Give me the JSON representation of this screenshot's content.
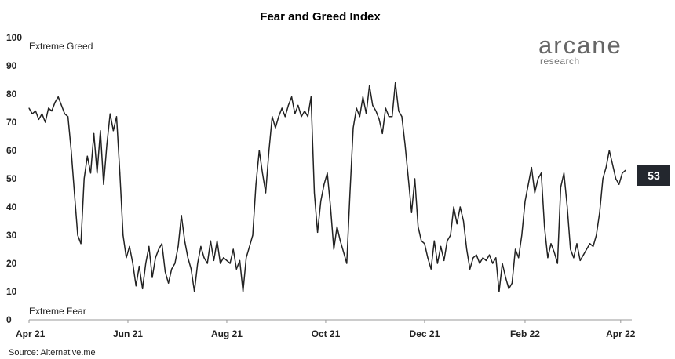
{
  "chart_data": {
    "type": "line",
    "title": "Fear and Greed Index",
    "annotations": {
      "top": "Extreme Greed",
      "bottom": "Extreme Fear"
    },
    "source": "Source: Alternative.me",
    "logo": {
      "main": "arcane",
      "sub": "research"
    },
    "last_value_label": "53",
    "ylim": [
      0,
      100
    ],
    "yticks": [
      0,
      10,
      20,
      30,
      40,
      50,
      60,
      70,
      80,
      90,
      100
    ],
    "xticks": [
      {
        "label": "Apr 21",
        "x": "2021-04-01"
      },
      {
        "label": "Jun 21",
        "x": "2021-06-01"
      },
      {
        "label": "Aug 21",
        "x": "2021-08-01"
      },
      {
        "label": "Oct 21",
        "x": "2021-10-01"
      },
      {
        "label": "Dec 21",
        "x": "2021-12-01"
      },
      {
        "label": "Feb 22",
        "x": "2022-02-01"
      },
      {
        "label": "Apr 22",
        "x": "2022-04-01"
      }
    ],
    "xlim": [
      "2021-04-01",
      "2022-04-04"
    ],
    "series": [
      {
        "color": "#222222",
        "points": [
          [
            "2021-04-01",
            75
          ],
          [
            "2021-04-03",
            73
          ],
          [
            "2021-04-05",
            74
          ],
          [
            "2021-04-07",
            71
          ],
          [
            "2021-04-09",
            73
          ],
          [
            "2021-04-11",
            70
          ],
          [
            "2021-04-13",
            75
          ],
          [
            "2021-04-15",
            74
          ],
          [
            "2021-04-17",
            77
          ],
          [
            "2021-04-19",
            79
          ],
          [
            "2021-04-21",
            76
          ],
          [
            "2021-04-23",
            73
          ],
          [
            "2021-04-25",
            72
          ],
          [
            "2021-04-27",
            60
          ],
          [
            "2021-04-29",
            45
          ],
          [
            "2021-05-01",
            30
          ],
          [
            "2021-05-03",
            27
          ],
          [
            "2021-05-05",
            50
          ],
          [
            "2021-05-07",
            58
          ],
          [
            "2021-05-09",
            52
          ],
          [
            "2021-05-11",
            66
          ],
          [
            "2021-05-13",
            52
          ],
          [
            "2021-05-15",
            67
          ],
          [
            "2021-05-17",
            48
          ],
          [
            "2021-05-19",
            62
          ],
          [
            "2021-05-21",
            73
          ],
          [
            "2021-05-23",
            67
          ],
          [
            "2021-05-25",
            72
          ],
          [
            "2021-05-27",
            52
          ],
          [
            "2021-05-29",
            30
          ],
          [
            "2021-05-31",
            22
          ],
          [
            "2021-06-02",
            26
          ],
          [
            "2021-06-04",
            20
          ],
          [
            "2021-06-06",
            12
          ],
          [
            "2021-06-08",
            19
          ],
          [
            "2021-06-10",
            11
          ],
          [
            "2021-06-12",
            20
          ],
          [
            "2021-06-14",
            26
          ],
          [
            "2021-06-16",
            15
          ],
          [
            "2021-06-18",
            22
          ],
          [
            "2021-06-20",
            25
          ],
          [
            "2021-06-22",
            27
          ],
          [
            "2021-06-24",
            17
          ],
          [
            "2021-06-26",
            13
          ],
          [
            "2021-06-28",
            18
          ],
          [
            "2021-06-30",
            20
          ],
          [
            "2021-07-02",
            26
          ],
          [
            "2021-07-04",
            37
          ],
          [
            "2021-07-06",
            28
          ],
          [
            "2021-07-08",
            22
          ],
          [
            "2021-07-10",
            18
          ],
          [
            "2021-07-12",
            10
          ],
          [
            "2021-07-14",
            20
          ],
          [
            "2021-07-16",
            26
          ],
          [
            "2021-07-18",
            22
          ],
          [
            "2021-07-20",
            20
          ],
          [
            "2021-07-22",
            28
          ],
          [
            "2021-07-24",
            21
          ],
          [
            "2021-07-26",
            28
          ],
          [
            "2021-07-28",
            20
          ],
          [
            "2021-07-30",
            22
          ],
          [
            "2021-08-01",
            21
          ],
          [
            "2021-08-03",
            20
          ],
          [
            "2021-08-05",
            25
          ],
          [
            "2021-08-07",
            18
          ],
          [
            "2021-08-09",
            21
          ],
          [
            "2021-08-11",
            10
          ],
          [
            "2021-08-13",
            22
          ],
          [
            "2021-08-15",
            26
          ],
          [
            "2021-08-17",
            30
          ],
          [
            "2021-08-19",
            48
          ],
          [
            "2021-08-21",
            60
          ],
          [
            "2021-08-23",
            52
          ],
          [
            "2021-08-25",
            45
          ],
          [
            "2021-08-27",
            60
          ],
          [
            "2021-08-29",
            72
          ],
          [
            "2021-08-31",
            68
          ],
          [
            "2021-09-02",
            72
          ],
          [
            "2021-09-04",
            75
          ],
          [
            "2021-09-06",
            72
          ],
          [
            "2021-09-08",
            76
          ],
          [
            "2021-09-10",
            79
          ],
          [
            "2021-09-12",
            73
          ],
          [
            "2021-09-14",
            76
          ],
          [
            "2021-09-16",
            72
          ],
          [
            "2021-09-18",
            74
          ],
          [
            "2021-09-20",
            72
          ],
          [
            "2021-09-22",
            79
          ],
          [
            "2021-09-24",
            45
          ],
          [
            "2021-09-26",
            31
          ],
          [
            "2021-09-28",
            42
          ],
          [
            "2021-09-30",
            48
          ],
          [
            "2021-10-02",
            52
          ],
          [
            "2021-10-04",
            40
          ],
          [
            "2021-10-06",
            25
          ],
          [
            "2021-10-08",
            33
          ],
          [
            "2021-10-10",
            28
          ],
          [
            "2021-10-12",
            24
          ],
          [
            "2021-10-14",
            20
          ],
          [
            "2021-10-16",
            45
          ],
          [
            "2021-10-18",
            68
          ],
          [
            "2021-10-20",
            75
          ],
          [
            "2021-10-22",
            72
          ],
          [
            "2021-10-24",
            79
          ],
          [
            "2021-10-26",
            73
          ],
          [
            "2021-10-28",
            83
          ],
          [
            "2021-10-30",
            76
          ],
          [
            "2021-11-01",
            74
          ],
          [
            "2021-11-03",
            71
          ],
          [
            "2021-11-05",
            66
          ],
          [
            "2021-11-07",
            75
          ],
          [
            "2021-11-09",
            72
          ],
          [
            "2021-11-11",
            72
          ],
          [
            "2021-11-13",
            84
          ],
          [
            "2021-11-15",
            74
          ],
          [
            "2021-11-17",
            72
          ],
          [
            "2021-11-19",
            62
          ],
          [
            "2021-11-21",
            50
          ],
          [
            "2021-11-23",
            38
          ],
          [
            "2021-11-25",
            50
          ],
          [
            "2021-11-27",
            33
          ],
          [
            "2021-11-29",
            28
          ],
          [
            "2021-12-01",
            27
          ],
          [
            "2021-12-03",
            22
          ],
          [
            "2021-12-05",
            18
          ],
          [
            "2021-12-07",
            28
          ],
          [
            "2021-12-09",
            20
          ],
          [
            "2021-12-11",
            26
          ],
          [
            "2021-12-13",
            21
          ],
          [
            "2021-12-15",
            28
          ],
          [
            "2021-12-17",
            30
          ],
          [
            "2021-12-19",
            40
          ],
          [
            "2021-12-21",
            34
          ],
          [
            "2021-12-23",
            40
          ],
          [
            "2021-12-25",
            35
          ],
          [
            "2021-12-27",
            25
          ],
          [
            "2021-12-29",
            18
          ],
          [
            "2021-12-31",
            22
          ],
          [
            "2022-01-02",
            23
          ],
          [
            "2022-01-04",
            20
          ],
          [
            "2022-01-06",
            22
          ],
          [
            "2022-01-08",
            21
          ],
          [
            "2022-01-10",
            23
          ],
          [
            "2022-01-12",
            20
          ],
          [
            "2022-01-14",
            22
          ],
          [
            "2022-01-16",
            10
          ],
          [
            "2022-01-18",
            20
          ],
          [
            "2022-01-20",
            15
          ],
          [
            "2022-01-22",
            11
          ],
          [
            "2022-01-24",
            13
          ],
          [
            "2022-01-26",
            25
          ],
          [
            "2022-01-28",
            22
          ],
          [
            "2022-01-30",
            30
          ],
          [
            "2022-02-01",
            42
          ],
          [
            "2022-02-03",
            48
          ],
          [
            "2022-02-05",
            54
          ],
          [
            "2022-02-07",
            45
          ],
          [
            "2022-02-09",
            50
          ],
          [
            "2022-02-11",
            52
          ],
          [
            "2022-02-13",
            33
          ],
          [
            "2022-02-15",
            22
          ],
          [
            "2022-02-17",
            27
          ],
          [
            "2022-02-19",
            24
          ],
          [
            "2022-02-21",
            20
          ],
          [
            "2022-02-23",
            47
          ],
          [
            "2022-02-25",
            52
          ],
          [
            "2022-02-27",
            40
          ],
          [
            "2022-03-01",
            25
          ],
          [
            "2022-03-03",
            22
          ],
          [
            "2022-03-05",
            27
          ],
          [
            "2022-03-07",
            21
          ],
          [
            "2022-03-09",
            23
          ],
          [
            "2022-03-11",
            25
          ],
          [
            "2022-03-13",
            27
          ],
          [
            "2022-03-15",
            26
          ],
          [
            "2022-03-17",
            30
          ],
          [
            "2022-03-19",
            38
          ],
          [
            "2022-03-21",
            50
          ],
          [
            "2022-03-23",
            54
          ],
          [
            "2022-03-25",
            60
          ],
          [
            "2022-03-27",
            55
          ],
          [
            "2022-03-29",
            50
          ],
          [
            "2022-03-31",
            48
          ],
          [
            "2022-04-02",
            52
          ],
          [
            "2022-04-04",
            53
          ]
        ]
      }
    ]
  }
}
